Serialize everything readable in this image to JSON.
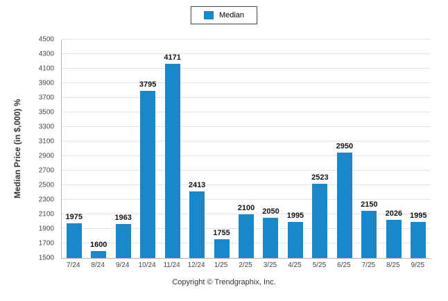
{
  "chart_data": {
    "type": "bar",
    "title": "",
    "categories": [
      "7/24",
      "8/24",
      "9/24",
      "10/24",
      "11/24",
      "12/24",
      "1/25",
      "2/25",
      "3/25",
      "4/25",
      "5/25",
      "6/25",
      "7/25",
      "8/25",
      "9/25"
    ],
    "series": [
      {
        "name": "Median",
        "values": [
          1975,
          1600,
          1963,
          3795,
          4171,
          2413,
          1755,
          2100,
          2050,
          1995,
          2523,
          2950,
          2150,
          2026,
          1995
        ],
        "color": "#1a87c9"
      }
    ],
    "xlabel": "",
    "ylabel": "Median Price (in $,000) %",
    "ylim": [
      1500,
      4500
    ],
    "ytick_step": 200,
    "grid": true,
    "legend_position": "top",
    "footer": "Copyright © Trendgraphix, Inc."
  }
}
